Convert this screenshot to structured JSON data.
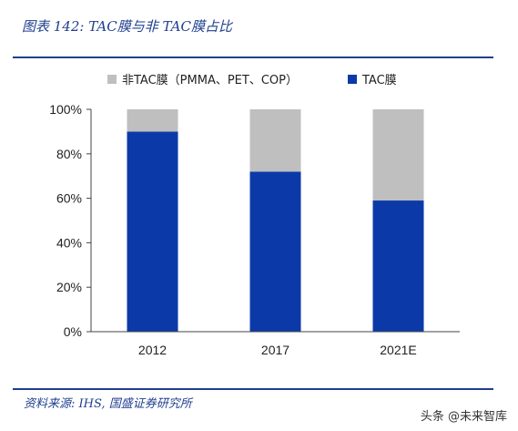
{
  "header": {
    "title": "图表 142:  TAC膜与非 TAC膜占比"
  },
  "footer": {
    "source": "资料来源:  IHS,  国盛证券研究所",
    "watermark": "头条 @未来智库"
  },
  "chart_data": {
    "type": "bar",
    "stacked": true,
    "categories": [
      "2012",
      "2017",
      "2021E"
    ],
    "series": [
      {
        "name": "TAC膜",
        "color": "#0b3aa8",
        "values": [
          90,
          72,
          59
        ]
      },
      {
        "name": "非TAC膜（PMMA、PET、COP）",
        "color": "#bfbfbf",
        "values": [
          10,
          28,
          41
        ]
      }
    ],
    "ylim": [
      0,
      100
    ],
    "yticks": [
      0,
      20,
      40,
      60,
      80,
      100
    ],
    "ytick_labels": [
      "0%",
      "20%",
      "40%",
      "60%",
      "80%",
      "100%"
    ],
    "legend_order": [
      1,
      0
    ],
    "legend_position": "top",
    "grid": false
  }
}
